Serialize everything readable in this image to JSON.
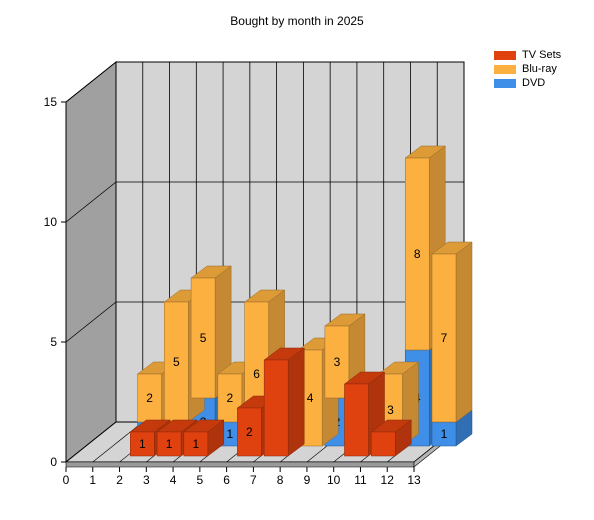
{
  "chart_data": {
    "type": "bar",
    "stacked": true,
    "three_d": true,
    "title": "Bought by month in 2025",
    "x_ticks": [
      "0",
      "1",
      "2",
      "3",
      "4",
      "5",
      "6",
      "7",
      "8",
      "9",
      "10",
      "11",
      "12",
      "13"
    ],
    "y_ticks": [
      "0",
      "5",
      "10",
      "15"
    ],
    "ylim": [
      0,
      15
    ],
    "grid": true,
    "legend_position": "top-right",
    "series": [
      {
        "name": "TV Sets",
        "color": "#e0420f",
        "values": [
          {
            "x": 3,
            "y": 1
          },
          {
            "x": 4,
            "y": 1
          },
          {
            "x": 5,
            "y": 1
          },
          {
            "x": 7,
            "y": 2
          },
          {
            "x": 8,
            "y": 4
          },
          {
            "x": 11,
            "y": 3
          },
          {
            "x": 12,
            "y": 1
          }
        ],
        "labels": [
          "1",
          "1",
          "1",
          "2",
          "",
          "",
          ""
        ]
      },
      {
        "name": "Blu-ray",
        "color": "#fbb040",
        "values": [
          {
            "x": 2,
            "y": 2
          },
          {
            "x": 3,
            "y": 5
          },
          {
            "x": 4,
            "y": 5
          },
          {
            "x": 5,
            "y": 2
          },
          {
            "x": 6,
            "y": 6
          },
          {
            "x": 8,
            "y": 4
          },
          {
            "x": 9,
            "y": 3
          },
          {
            "x": 10,
            "y": 2
          },
          {
            "x": 11,
            "y": 3
          },
          {
            "x": 12,
            "y": 8
          },
          {
            "x": 13,
            "y": 7
          }
        ],
        "labels": [
          "2",
          "5",
          "5",
          "2",
          "6",
          "4",
          "3",
          "2",
          "3",
          "8",
          "7"
        ]
      },
      {
        "name": "DVD",
        "color": "#3f8ee8",
        "values": [
          {
            "x": 2,
            "y": 1
          },
          {
            "x": 3,
            "y": 1
          },
          {
            "x": 4,
            "y": 2
          },
          {
            "x": 5,
            "y": 1
          },
          {
            "x": 9,
            "y": 2
          },
          {
            "x": 12,
            "y": 4
          },
          {
            "x": 13,
            "y": 1
          }
        ],
        "labels": [
          "1",
          "1",
          "2",
          "1",
          "2",
          "4",
          "1"
        ]
      }
    ]
  }
}
